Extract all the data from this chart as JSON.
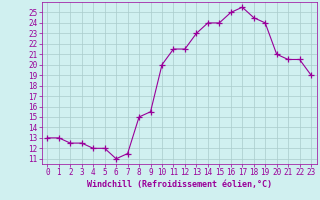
{
  "x": [
    0,
    1,
    2,
    3,
    4,
    5,
    6,
    7,
    8,
    9,
    10,
    11,
    12,
    13,
    14,
    15,
    16,
    17,
    18,
    19,
    20,
    21,
    22,
    23
  ],
  "y": [
    13,
    13,
    12.5,
    12.5,
    12,
    12,
    11,
    11.5,
    15,
    15.5,
    20,
    21.5,
    21.5,
    23,
    24,
    24,
    25,
    25.5,
    24.5,
    24,
    21,
    20.5,
    20.5,
    19
  ],
  "xlim": [
    -0.5,
    23.5
  ],
  "ylim": [
    10.5,
    26
  ],
  "yticks": [
    11,
    12,
    13,
    14,
    15,
    16,
    17,
    18,
    19,
    20,
    21,
    22,
    23,
    24,
    25
  ],
  "xticks": [
    0,
    1,
    2,
    3,
    4,
    5,
    6,
    7,
    8,
    9,
    10,
    11,
    12,
    13,
    14,
    15,
    16,
    17,
    18,
    19,
    20,
    21,
    22,
    23
  ],
  "xlabel": "Windchill (Refroidissement éolien,°C)",
  "line_color": "#990099",
  "marker": "+",
  "background_color": "#d0f0f0",
  "grid_color": "#aacccc",
  "tick_fontsize": 5.5,
  "xlabel_fontsize": 6.0
}
